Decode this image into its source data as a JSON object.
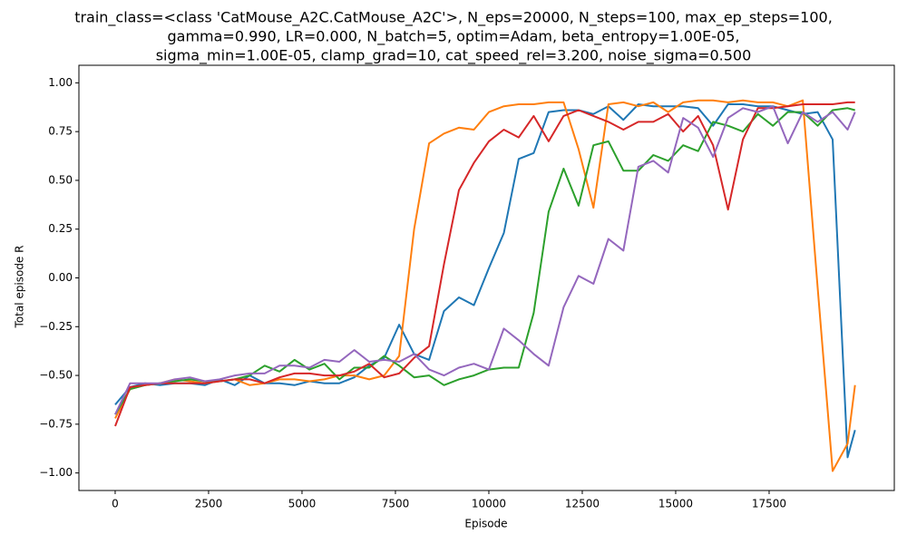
{
  "chart_data": {
    "type": "line",
    "title": [
      "train_class=<class 'CatMouse_A2C.CatMouse_A2C'>, N_eps=20000, N_steps=100, max_ep_steps=100,",
      "gamma=0.990, LR=0.000, N_batch=5, optim=Adam, beta_entropy=1.00E-05,",
      "sigma_min=1.00E-05, clamp_grad=10, cat_speed_rel=3.200, noise_sigma=0.500"
    ],
    "x_label": "Episode",
    "y_label": "Total episode R",
    "xlim": [
      -970,
      20850
    ],
    "ylim": [
      -1.09,
      1.09
    ],
    "xticks": [
      0,
      2500,
      5000,
      7500,
      10000,
      12500,
      15000,
      17500
    ],
    "yticks": [
      {
        "value": -1,
        "label": "−1.00"
      },
      {
        "value": -0.75,
        "label": "−0.75"
      },
      {
        "value": -0.5,
        "label": "−0.50"
      },
      {
        "value": -0.25,
        "label": "−0.25"
      },
      {
        "value": 0,
        "label": "0.00"
      },
      {
        "value": 0.25,
        "label": "0.25"
      },
      {
        "value": 0.5,
        "label": "0.50"
      },
      {
        "value": 0.75,
        "label": "0.75"
      },
      {
        "value": 1,
        "label": "1.00"
      }
    ],
    "x": [
      0,
      400,
      800,
      1200,
      1600,
      2000,
      2400,
      2800,
      3200,
      3600,
      4000,
      4400,
      4800,
      5200,
      5600,
      6000,
      6400,
      6800,
      7200,
      7600,
      8000,
      8400,
      8800,
      9200,
      9600,
      10000,
      10400,
      10800,
      11200,
      11600,
      12000,
      12400,
      12800,
      13200,
      13600,
      14000,
      14400,
      14800,
      15200,
      15600,
      16000,
      16400,
      16800,
      17200,
      17600,
      18000,
      18400,
      18800,
      19200,
      19600,
      19800
    ],
    "series": [
      {
        "color": "#1f77b4",
        "values": [
          -0.65,
          -0.56,
          -0.54,
          -0.55,
          -0.54,
          -0.54,
          -0.55,
          -0.52,
          -0.55,
          -0.5,
          -0.54,
          -0.54,
          -0.55,
          -0.53,
          -0.54,
          -0.54,
          -0.51,
          -0.45,
          -0.41,
          -0.24,
          -0.39,
          -0.42,
          -0.17,
          -0.1,
          -0.14,
          0.05,
          0.23,
          0.61,
          0.64,
          0.85,
          0.86,
          0.86,
          0.84,
          0.88,
          0.81,
          0.89,
          0.88,
          0.88,
          0.88,
          0.87,
          0.78,
          0.89,
          0.89,
          0.88,
          0.88,
          0.86,
          0.84,
          0.85,
          0.71,
          -0.92,
          -0.78
        ]
      },
      {
        "color": "#ff7f0e",
        "values": [
          -0.72,
          -0.57,
          -0.55,
          -0.54,
          -0.52,
          -0.53,
          -0.54,
          -0.53,
          -0.52,
          -0.55,
          -0.54,
          -0.52,
          -0.52,
          -0.53,
          -0.52,
          -0.5,
          -0.5,
          -0.52,
          -0.5,
          -0.4,
          0.25,
          0.69,
          0.74,
          0.77,
          0.76,
          0.85,
          0.88,
          0.89,
          0.89,
          0.9,
          0.9,
          0.66,
          0.36,
          0.89,
          0.9,
          0.88,
          0.9,
          0.85,
          0.9,
          0.91,
          0.91,
          0.9,
          0.91,
          0.9,
          0.9,
          0.88,
          0.91,
          -0.05,
          -0.99,
          -0.85,
          -0.55
        ]
      },
      {
        "color": "#2ca02c",
        "values": [
          -0.7,
          -0.57,
          -0.55,
          -0.54,
          -0.53,
          -0.52,
          -0.53,
          -0.53,
          -0.52,
          -0.5,
          -0.45,
          -0.48,
          -0.42,
          -0.47,
          -0.44,
          -0.52,
          -0.46,
          -0.46,
          -0.4,
          -0.45,
          -0.51,
          -0.5,
          -0.55,
          -0.52,
          -0.5,
          -0.47,
          -0.46,
          -0.46,
          -0.18,
          0.34,
          0.56,
          0.37,
          0.68,
          0.7,
          0.55,
          0.55,
          0.63,
          0.6,
          0.68,
          0.65,
          0.8,
          0.78,
          0.75,
          0.84,
          0.78,
          0.85,
          0.85,
          0.78,
          0.86,
          0.87,
          0.86
        ]
      },
      {
        "color": "#d62728",
        "values": [
          -0.76,
          -0.56,
          -0.55,
          -0.54,
          -0.54,
          -0.54,
          -0.54,
          -0.53,
          -0.52,
          -0.52,
          -0.54,
          -0.51,
          -0.49,
          -0.49,
          -0.5,
          -0.5,
          -0.48,
          -0.44,
          -0.51,
          -0.49,
          -0.41,
          -0.35,
          0.07,
          0.45,
          0.59,
          0.7,
          0.76,
          0.72,
          0.83,
          0.7,
          0.83,
          0.86,
          0.83,
          0.8,
          0.76,
          0.8,
          0.8,
          0.84,
          0.75,
          0.83,
          0.68,
          0.35,
          0.71,
          0.87,
          0.87,
          0.88,
          0.89,
          0.89,
          0.89,
          0.9,
          0.9
        ]
      },
      {
        "color": "#9467bd",
        "values": [
          -0.7,
          -0.54,
          -0.54,
          -0.54,
          -0.52,
          -0.51,
          -0.53,
          -0.52,
          -0.5,
          -0.49,
          -0.49,
          -0.45,
          -0.45,
          -0.46,
          -0.42,
          -0.43,
          -0.37,
          -0.43,
          -0.42,
          -0.43,
          -0.39,
          -0.47,
          -0.5,
          -0.46,
          -0.44,
          -0.47,
          -0.26,
          -0.32,
          -0.39,
          -0.45,
          -0.15,
          0.01,
          -0.03,
          0.2,
          0.14,
          0.57,
          0.6,
          0.54,
          0.82,
          0.77,
          0.62,
          0.82,
          0.87,
          0.85,
          0.88,
          0.69,
          0.85,
          0.8,
          0.85,
          0.76,
          0.85
        ]
      }
    ]
  }
}
